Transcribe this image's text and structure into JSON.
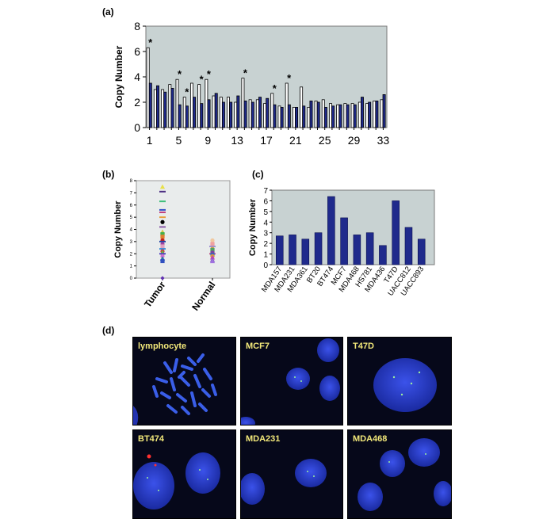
{
  "panels": {
    "a": "(a)",
    "b": "(b)",
    "c": "(c)",
    "d": "(d)"
  },
  "colors": {
    "plot_bg": "#c8d2d2",
    "bar_blue": "#1f2a8c",
    "bar_white": "#ffffff",
    "nucleus_blue": "#2a3fd6",
    "label_yellow": "#f2e87a"
  },
  "chart_data": [
    {
      "id": "a",
      "type": "bar",
      "ylabel": "Copy Number",
      "ylim": [
        0,
        8
      ],
      "yticks": [
        0,
        2,
        4,
        6,
        8
      ],
      "xtick_labels": [
        "1",
        "5",
        "9",
        "13",
        "17",
        "21",
        "25",
        "29",
        "33"
      ],
      "categories": [
        "1",
        "2",
        "3",
        "4",
        "5",
        "6",
        "7",
        "8",
        "9",
        "10",
        "11",
        "12",
        "13",
        "14",
        "15",
        "16",
        "17",
        "18",
        "19",
        "20",
        "21",
        "22",
        "23",
        "24",
        "25",
        "26",
        "27",
        "28",
        "29",
        "30",
        "31",
        "32",
        "33"
      ],
      "series": [
        {
          "values": [
            6.3,
            3.0,
            3.0,
            3.4,
            3.8,
            2.4,
            3.5,
            3.4,
            3.8,
            2.5,
            2.4,
            2.4,
            2.0,
            3.9,
            2.2,
            2.2,
            1.9,
            2.7,
            1.7,
            3.5,
            1.6,
            3.2,
            1.6,
            2.1,
            2.2,
            1.9,
            1.8,
            1.9,
            1.9,
            2.0,
            1.9,
            2.1,
            2.2
          ]
        },
        {
          "values": [
            3.5,
            3.3,
            2.8,
            3.1,
            1.8,
            1.7,
            2.4,
            1.9,
            2.2,
            2.7,
            2.0,
            2.0,
            2.5,
            2.1,
            2.0,
            2.4,
            2.3,
            1.8,
            1.6,
            1.8,
            1.6,
            1.7,
            2.1,
            2.0,
            1.6,
            1.7,
            1.8,
            1.8,
            1.8,
            2.4,
            2.0,
            2.1,
            2.6
          ]
        }
      ],
      "asterisks": [
        "1",
        "5",
        "6",
        "8",
        "9",
        "14",
        "18",
        "20"
      ],
      "asterisk_text": "*"
    },
    {
      "id": "b",
      "type": "scatter",
      "ylabel": "Copy Number",
      "ylim": [
        0,
        8
      ],
      "yticks": [
        0,
        1,
        2,
        3,
        4,
        5,
        6,
        7,
        8
      ],
      "categories": [
        "Tumor",
        "Normal"
      ],
      "points": [
        {
          "x": "Tumor",
          "y": 7.5,
          "color": "#e8e04a",
          "shape": "triangle"
        },
        {
          "x": "Tumor",
          "y": 7.1,
          "color": "#4b2d82",
          "shape": "dash"
        },
        {
          "x": "Tumor",
          "y": 6.3,
          "color": "#3dbf7a",
          "shape": "dash"
        },
        {
          "x": "Tumor",
          "y": 5.6,
          "color": "#3050c8",
          "shape": "dash"
        },
        {
          "x": "Tumor",
          "y": 5.4,
          "color": "#c04080",
          "shape": "dash"
        },
        {
          "x": "Tumor",
          "y": 5.0,
          "color": "#e8a040",
          "shape": "dash"
        },
        {
          "x": "Tumor",
          "y": 4.6,
          "color": "#000000",
          "shape": "circle"
        },
        {
          "x": "Tumor",
          "y": 4.2,
          "color": "#8a5aa8",
          "shape": "dash"
        },
        {
          "x": "Tumor",
          "y": 3.8,
          "color": "#d4c840",
          "shape": "triangle"
        },
        {
          "x": "Tumor",
          "y": 3.6,
          "color": "#40b050",
          "shape": "square"
        },
        {
          "x": "Tumor",
          "y": 3.4,
          "color": "#e08030",
          "shape": "square"
        },
        {
          "x": "Tumor",
          "y": 3.1,
          "color": "#c02020",
          "shape": "circle"
        },
        {
          "x": "Tumor",
          "y": 3.0,
          "color": "#2040a0",
          "shape": "dash"
        },
        {
          "x": "Tumor",
          "y": 2.8,
          "color": "#9c40a0",
          "shape": "circle"
        },
        {
          "x": "Tumor",
          "y": 2.6,
          "color": "#e0a0c0",
          "shape": "square"
        },
        {
          "x": "Tumor",
          "y": 2.4,
          "color": "#3a8ad8",
          "shape": "dash"
        },
        {
          "x": "Tumor",
          "y": 2.2,
          "color": "#c84040",
          "shape": "circle"
        },
        {
          "x": "Tumor",
          "y": 2.1,
          "color": "#60c040",
          "shape": "triangle"
        },
        {
          "x": "Tumor",
          "y": 2.0,
          "color": "#5040c0",
          "shape": "dash"
        },
        {
          "x": "Tumor",
          "y": 1.8,
          "color": "#d070d0",
          "shape": "circle"
        },
        {
          "x": "Tumor",
          "y": 1.6,
          "color": "#2080a0",
          "shape": "triangle"
        },
        {
          "x": "Tumor",
          "y": 1.4,
          "color": "#3050c0",
          "shape": "square"
        },
        {
          "x": "Tumor",
          "y": 0.0,
          "color": "#6030b0",
          "shape": "diamond"
        },
        {
          "x": "Normal",
          "y": 3.1,
          "color": "#f0c8a0",
          "shape": "circle"
        },
        {
          "x": "Normal",
          "y": 2.8,
          "color": "#f0a0a0",
          "shape": "square"
        },
        {
          "x": "Normal",
          "y": 2.6,
          "color": "#a090d0",
          "shape": "dash"
        },
        {
          "x": "Normal",
          "y": 2.4,
          "color": "#d0a040",
          "shape": "circle"
        },
        {
          "x": "Normal",
          "y": 2.3,
          "color": "#50a060",
          "shape": "square"
        },
        {
          "x": "Normal",
          "y": 2.1,
          "color": "#8040a0",
          "shape": "circle"
        },
        {
          "x": "Normal",
          "y": 2.0,
          "color": "#c06090",
          "shape": "dash"
        },
        {
          "x": "Normal",
          "y": 1.9,
          "color": "#3060c0",
          "shape": "square"
        },
        {
          "x": "Normal",
          "y": 1.8,
          "color": "#e0a030",
          "shape": "circle"
        },
        {
          "x": "Normal",
          "y": 1.7,
          "color": "#c040c0",
          "shape": "triangle"
        },
        {
          "x": "Normal",
          "y": 1.5,
          "color": "#8060c0",
          "shape": "triangle"
        },
        {
          "x": "Normal",
          "y": 1.4,
          "color": "#a070e0",
          "shape": "triangle"
        }
      ]
    },
    {
      "id": "c",
      "type": "bar",
      "ylabel": "Copy Number",
      "ylim": [
        0,
        7
      ],
      "yticks": [
        0,
        1,
        2,
        3,
        4,
        5,
        6,
        7
      ],
      "categories": [
        "MDA157",
        "MDA231",
        "MDA361",
        "BT20",
        "BT474",
        "MCF7",
        "MDA468",
        "HS781",
        "MDA436",
        "T47D",
        "UACC812",
        "UACC893"
      ],
      "values": [
        2.7,
        2.8,
        2.4,
        3.0,
        6.4,
        4.4,
        2.8,
        3.0,
        1.8,
        6.0,
        3.5,
        2.4
      ]
    }
  ],
  "micrographs": [
    {
      "label": "lymphocyte"
    },
    {
      "label": "MCF7"
    },
    {
      "label": "T47D"
    },
    {
      "label": "BT474"
    },
    {
      "label": "MDA231"
    },
    {
      "label": "MDA468"
    }
  ]
}
